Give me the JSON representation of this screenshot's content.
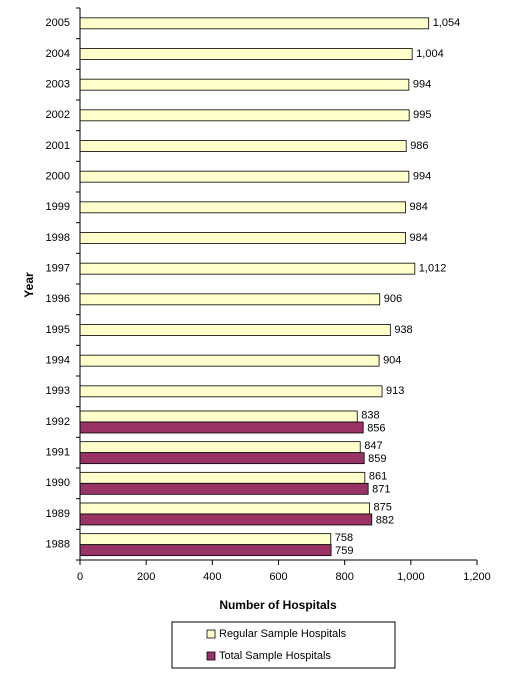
{
  "chart_data": {
    "type": "hbar",
    "x_label": "Number of Hospitals",
    "y_label": "Year",
    "categories": [
      "2005",
      "2004",
      "2003",
      "2002",
      "2001",
      "2000",
      "1999",
      "1998",
      "1997",
      "1996",
      "1995",
      "1994",
      "1993",
      "1992",
      "1991",
      "1990",
      "1989",
      "1988"
    ],
    "series": [
      {
        "name": "Regular Sample Hospitals",
        "color": "#ffffcc",
        "values": [
          1054,
          1004,
          994,
          995,
          986,
          994,
          984,
          984,
          1012,
          906,
          938,
          904,
          913,
          838,
          847,
          861,
          875,
          758
        ],
        "value_labels": [
          "1,054",
          "1,004",
          "994",
          "995",
          "986",
          "994",
          "984",
          "984",
          "1,012",
          "906",
          "938",
          "904",
          "913",
          "838",
          "847",
          "861",
          "875",
          "758"
        ]
      },
      {
        "name": "Total Sample Hospitals",
        "color": "#993366",
        "values": [
          null,
          null,
          null,
          null,
          null,
          null,
          null,
          null,
          null,
          null,
          null,
          null,
          null,
          856,
          859,
          871,
          882,
          759
        ]
      }
    ],
    "xlim": [
      0,
      1200
    ],
    "xticks": [
      0,
      200,
      400,
      600,
      800,
      {
        "value": 1000,
        "label": "1,000"
      },
      {
        "value": 1200,
        "label": "1,200"
      }
    ],
    "legend": "bottom"
  }
}
